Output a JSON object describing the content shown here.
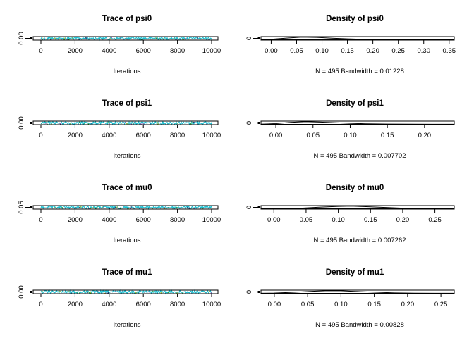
{
  "chart_data": [
    {
      "type": "line",
      "title": "Trace of psi0",
      "xlabel": "Iterations",
      "xlim": [
        0,
        10000
      ],
      "x_ticks": [
        0,
        2000,
        4000,
        6000,
        8000,
        10000
      ],
      "y_ticks": [
        0.0
      ],
      "y_tick_labels": [
        "0.00"
      ],
      "ylim": [
        0.0,
        0.36
      ],
      "series": [
        {
          "color": "#17becf",
          "values": "approximate trace in the range 0.00 to 0.36 (compressed)"
        }
      ]
    },
    {
      "type": "line",
      "title": "Density of psi0",
      "subtitle": "N = 495   Bandwidth = 0.01228",
      "xlim": [
        -0.02,
        0.36
      ],
      "x_ticks": [
        0.0,
        0.05,
        0.1,
        0.15,
        0.2,
        0.25,
        0.3,
        0.35
      ],
      "x_tick_labels": [
        "0.00",
        "0.05",
        "0.10",
        "0.15",
        "0.20",
        "0.25",
        "0.30",
        "0.35"
      ],
      "y_ticks": [
        0
      ],
      "y_tick_labels": [
        "0"
      ],
      "x": [
        -0.02,
        0.0,
        0.03,
        0.06,
        0.09,
        0.12,
        0.15,
        0.18,
        0.21,
        0.25,
        0.3,
        0.36
      ],
      "y": [
        0.2,
        0.9,
        3.2,
        5.1,
        4.6,
        3.1,
        1.8,
        0.8,
        0.3,
        0.1,
        0.02,
        0.0
      ]
    },
    {
      "type": "line",
      "title": "Trace of psi1",
      "xlabel": "Iterations",
      "xlim": [
        0,
        10000
      ],
      "x_ticks": [
        0,
        2000,
        4000,
        6000,
        8000,
        10000
      ],
      "y_ticks": [
        0.0
      ],
      "y_tick_labels": [
        "0.00"
      ],
      "ylim": [
        0.0,
        0.24
      ],
      "series": [
        {
          "color": "#17becf"
        }
      ]
    },
    {
      "type": "line",
      "title": "Density of psi1",
      "subtitle": "N = 495   Bandwidth = 0.007702",
      "xlim": [
        -0.02,
        0.24
      ],
      "x_ticks": [
        0.0,
        0.05,
        0.1,
        0.15,
        0.2
      ],
      "x_tick_labels": [
        "0.00",
        "0.05",
        "0.10",
        "0.15",
        "0.20"
      ],
      "y_ticks": [
        0
      ],
      "y_tick_labels": [
        "0"
      ],
      "x": [
        -0.02,
        0.0,
        0.02,
        0.04,
        0.06,
        0.08,
        0.1,
        0.12,
        0.15,
        0.18,
        0.21,
        0.24
      ],
      "y": [
        0.3,
        1.8,
        5.4,
        7.2,
        6.1,
        4.3,
        2.6,
        1.4,
        0.6,
        0.2,
        0.05,
        0.0
      ]
    },
    {
      "type": "line",
      "title": "Trace of mu0",
      "xlabel": "Iterations",
      "xlim": [
        0,
        10000
      ],
      "x_ticks": [
        0,
        2000,
        4000,
        6000,
        8000,
        10000
      ],
      "y_ticks": [
        0.05
      ],
      "y_tick_labels": [
        "0.05"
      ],
      "ylim": [
        0.0,
        0.28
      ],
      "series": [
        {
          "color": "#17becf"
        }
      ]
    },
    {
      "type": "line",
      "title": "Density of mu0",
      "subtitle": "N = 495   Bandwidth = 0.007262",
      "xlim": [
        -0.02,
        0.28
      ],
      "x_ticks": [
        0.0,
        0.05,
        0.1,
        0.15,
        0.2,
        0.25
      ],
      "x_tick_labels": [
        "0.00",
        "0.05",
        "0.10",
        "0.15",
        "0.20",
        "0.25"
      ],
      "y_ticks": [
        0
      ],
      "y_tick_labels": [
        "0"
      ],
      "x": [
        -0.02,
        0.0,
        0.04,
        0.07,
        0.1,
        0.12,
        0.14,
        0.17,
        0.2,
        0.23,
        0.26,
        0.28
      ],
      "y": [
        0.0,
        0.1,
        1.2,
        3.6,
        5.7,
        6.2,
        5.3,
        3.2,
        1.4,
        0.4,
        0.1,
        0.0
      ]
    },
    {
      "type": "line",
      "title": "Trace of mu1",
      "xlabel": "Iterations",
      "xlim": [
        0,
        10000
      ],
      "x_ticks": [
        0,
        2000,
        4000,
        6000,
        8000,
        10000
      ],
      "y_ticks": [
        0.0
      ],
      "y_tick_labels": [
        "0.00"
      ],
      "ylim": [
        0.0,
        0.27
      ],
      "series": [
        {
          "color": "#17becf"
        }
      ]
    },
    {
      "type": "line",
      "title": "Density of mu1",
      "subtitle": "N = 495   Bandwidth = 0.00828",
      "xlim": [
        -0.02,
        0.27
      ],
      "x_ticks": [
        0.0,
        0.05,
        0.1,
        0.15,
        0.2,
        0.25
      ],
      "x_tick_labels": [
        "0.00",
        "0.05",
        "0.10",
        "0.15",
        "0.20",
        "0.25"
      ],
      "y_ticks": [
        0
      ],
      "y_tick_labels": [
        "0"
      ],
      "x": [
        -0.02,
        0.0,
        0.03,
        0.06,
        0.08,
        0.1,
        0.12,
        0.15,
        0.18,
        0.21,
        0.24,
        0.27
      ],
      "y": [
        0.05,
        0.4,
        2.1,
        4.5,
        5.6,
        5.4,
        4.2,
        2.3,
        0.9,
        0.3,
        0.05,
        0.0
      ]
    }
  ]
}
